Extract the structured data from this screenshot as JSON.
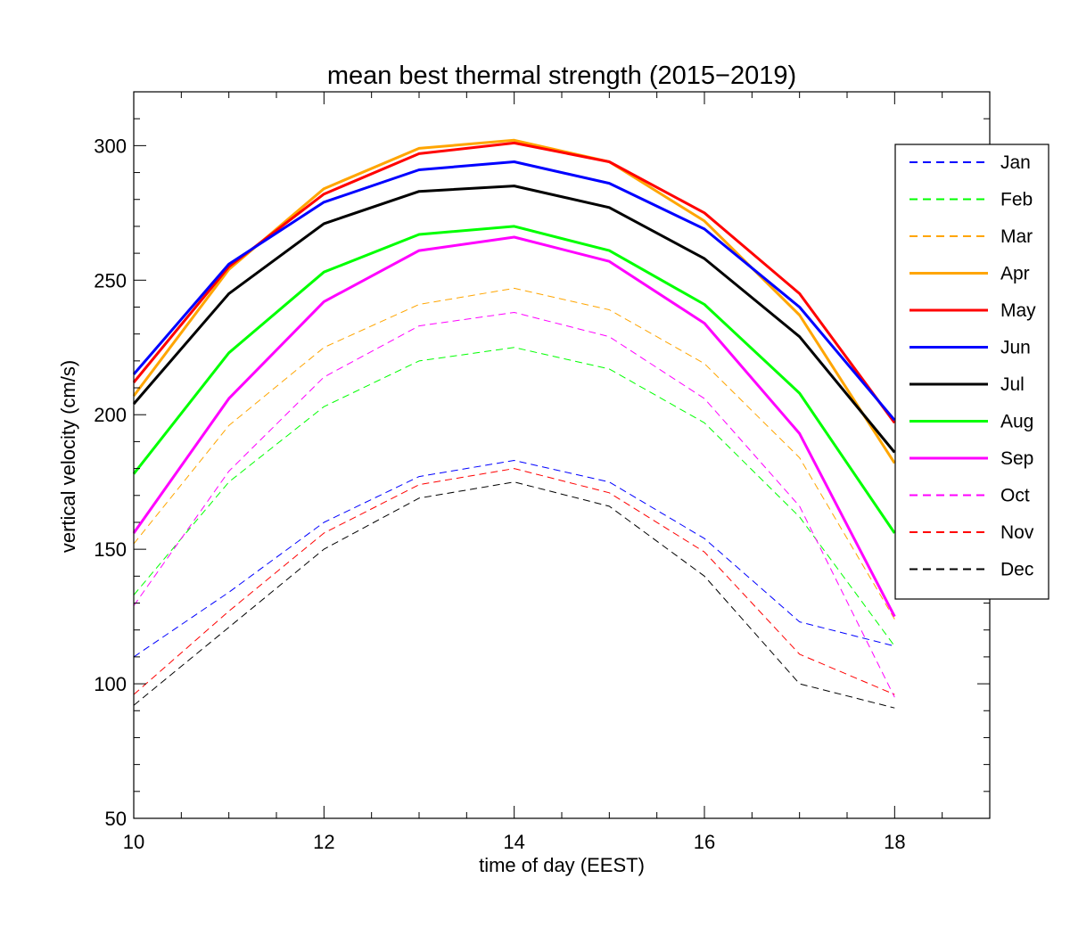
{
  "chart_data": {
    "type": "line",
    "title": "mean best thermal strength (2015−2019)",
    "xlabel": "time of day (EEST)",
    "ylabel": "vertical velocity (cm/s)",
    "xlim": [
      10,
      19
    ],
    "ylim": [
      50,
      320
    ],
    "xticks": [
      10,
      12,
      14,
      16,
      18
    ],
    "yticks": [
      50,
      100,
      150,
      200,
      250,
      300
    ],
    "grid": false,
    "legend_position": "right",
    "x": [
      10,
      11,
      12,
      13,
      14,
      15,
      16,
      17,
      18
    ],
    "series": [
      {
        "name": "Jan",
        "color": "#0000ff",
        "style": "dashed",
        "values": [
          110,
          134,
          160,
          177,
          183,
          175,
          154,
          123,
          114
        ]
      },
      {
        "name": "Feb",
        "color": "#00ff00",
        "style": "dashed",
        "values": [
          133,
          175,
          203,
          220,
          225,
          217,
          197,
          162,
          114
        ]
      },
      {
        "name": "Mar",
        "color": "#ffa500",
        "style": "dashed",
        "values": [
          152,
          196,
          225,
          241,
          247,
          239,
          219,
          184,
          124
        ]
      },
      {
        "name": "Apr",
        "color": "#ffa500",
        "style": "solid",
        "values": [
          207,
          254,
          284,
          299,
          302,
          294,
          272,
          237,
          182
        ]
      },
      {
        "name": "May",
        "color": "#ff0000",
        "style": "solid",
        "values": [
          212,
          255,
          282,
          297,
          301,
          294,
          275,
          245,
          197
        ]
      },
      {
        "name": "Jun",
        "color": "#0000ff",
        "style": "solid",
        "values": [
          215,
          256,
          279,
          291,
          294,
          286,
          269,
          240,
          198
        ]
      },
      {
        "name": "Jul",
        "color": "#000000",
        "style": "solid",
        "values": [
          204,
          245,
          271,
          283,
          285,
          277,
          258,
          229,
          186
        ]
      },
      {
        "name": "Aug",
        "color": "#00ff00",
        "style": "solid",
        "values": [
          178,
          223,
          253,
          267,
          270,
          261,
          241,
          208,
          156
        ]
      },
      {
        "name": "Sep",
        "color": "#ff00ff",
        "style": "solid",
        "values": [
          156,
          206,
          242,
          261,
          266,
          257,
          234,
          193,
          125
        ]
      },
      {
        "name": "Oct",
        "color": "#ff00ff",
        "style": "dashed",
        "values": [
          129,
          179,
          214,
          233,
          238,
          229,
          206,
          166,
          95
        ]
      },
      {
        "name": "Nov",
        "color": "#ff0000",
        "style": "dashed",
        "values": [
          96,
          127,
          156,
          174,
          180,
          171,
          149,
          111,
          96
        ]
      },
      {
        "name": "Dec",
        "color": "#000000",
        "style": "dashed",
        "values": [
          92,
          121,
          150,
          169,
          175,
          166,
          140,
          100,
          91
        ]
      }
    ]
  }
}
